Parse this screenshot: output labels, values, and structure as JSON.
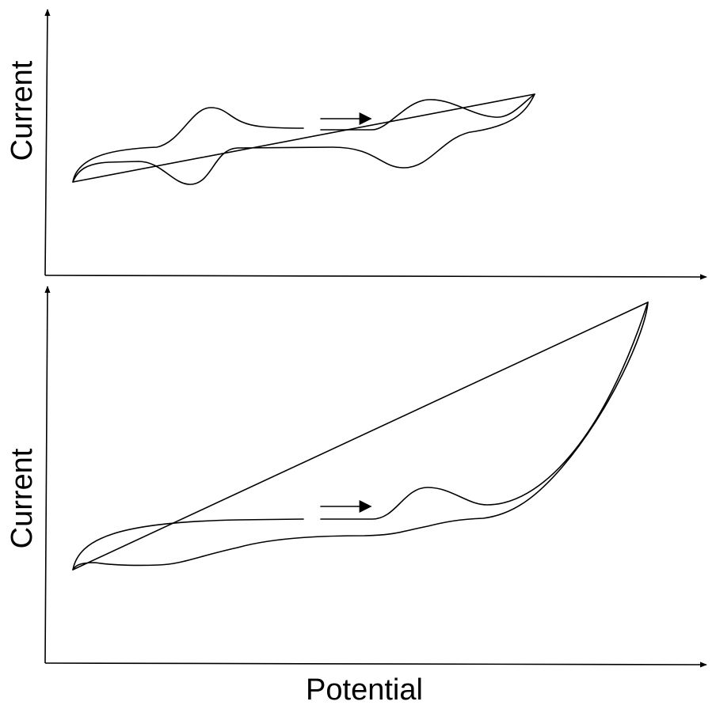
{
  "figure": {
    "top_panel": {
      "y_axis_label": "Current",
      "scan_direction": "forward"
    },
    "bottom_panel": {
      "y_axis_label": "Current",
      "x_axis_label": "Potential",
      "scan_direction": "forward"
    }
  }
}
